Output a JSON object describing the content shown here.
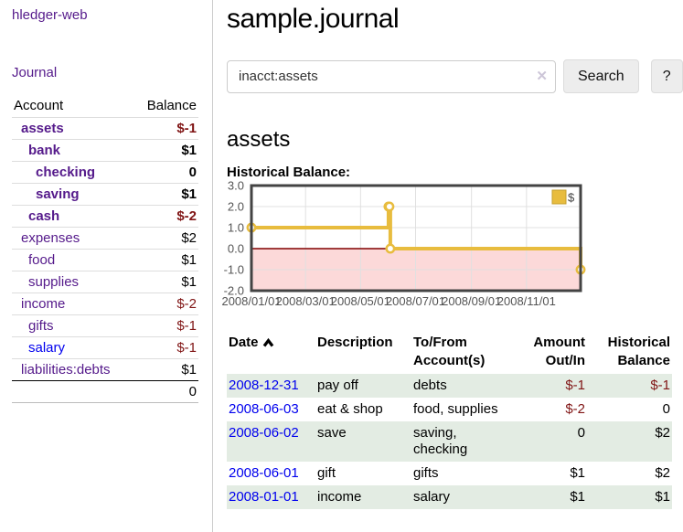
{
  "app": {
    "title": "hledger-web"
  },
  "colors": {
    "link_visited": "#551a8b",
    "link_unvisited": "#0000ee",
    "negative": "#801515",
    "stripe_green": "#e3ece3",
    "divider": "#cccccc"
  },
  "sidebar": {
    "journal_label": "Journal",
    "table": {
      "headers": [
        "Account",
        "Balance"
      ],
      "rows": [
        {
          "account": "assets",
          "balance": "$-1",
          "depth": 1,
          "bold": true,
          "negative": true,
          "link": "visited"
        },
        {
          "account": "bank",
          "balance": "$1",
          "depth": 2,
          "bold": true,
          "negative": false,
          "link": "visited"
        },
        {
          "account": "checking",
          "balance": "0",
          "depth": 3,
          "bold": true,
          "negative": false,
          "link": "visited"
        },
        {
          "account": "saving",
          "balance": "$1",
          "depth": 3,
          "bold": true,
          "negative": false,
          "link": "visited"
        },
        {
          "account": "cash",
          "balance": "$-2",
          "depth": 2,
          "bold": true,
          "negative": true,
          "link": "visited"
        },
        {
          "account": "expenses",
          "balance": "$2",
          "depth": 1,
          "bold": false,
          "negative": false,
          "link": "visited"
        },
        {
          "account": "food",
          "balance": "$1",
          "depth": 2,
          "bold": false,
          "negative": false,
          "link": "visited"
        },
        {
          "account": "supplies",
          "balance": "$1",
          "depth": 2,
          "bold": false,
          "negative": false,
          "link": "visited"
        },
        {
          "account": "income",
          "balance": "$-2",
          "depth": 1,
          "bold": false,
          "negative": true,
          "link": "visited"
        },
        {
          "account": "gifts",
          "balance": "$-1",
          "depth": 2,
          "bold": false,
          "negative": true,
          "link": "visited"
        },
        {
          "account": "salary",
          "balance": "$-1",
          "depth": 2,
          "bold": false,
          "negative": true,
          "link": "unvisited"
        },
        {
          "account": "liabilities:debts",
          "balance": "$1",
          "depth": 1,
          "bold": false,
          "negative": false,
          "link": "visited"
        }
      ],
      "total": "0"
    }
  },
  "header": {
    "title": "sample.journal"
  },
  "search": {
    "value": "inacct:assets",
    "clear_icon": "✕",
    "button_label": "Search",
    "help_label": "?"
  },
  "account_page": {
    "heading": "assets",
    "chart_label": "Historical Balance:"
  },
  "chart_data": {
    "type": "line",
    "step": true,
    "title": "Historical Balance",
    "series": [
      {
        "name": "$",
        "color": "#e8bc3e",
        "points": [
          {
            "date": "2008-01-01",
            "day": 0,
            "value": 1
          },
          {
            "date": "2008-06-01",
            "day": 152,
            "value": 2
          },
          {
            "date": "2008-06-02",
            "day": 153,
            "value": 2
          },
          {
            "date": "2008-06-03",
            "day": 154,
            "value": 0
          },
          {
            "date": "2008-12-31",
            "day": 365,
            "value": -1
          }
        ]
      }
    ],
    "x_ticks": [
      {
        "label": "2008/01/01",
        "day": 0
      },
      {
        "label": "2008/03/01",
        "day": 60
      },
      {
        "label": "2008/05/01",
        "day": 121
      },
      {
        "label": "2008/07/01",
        "day": 182
      },
      {
        "label": "2008/09/01",
        "day": 244
      },
      {
        "label": "2008/11/01",
        "day": 305
      }
    ],
    "y_ticks": [
      3.0,
      2.0,
      1.0,
      0.0,
      -1.0,
      -2.0
    ],
    "ylim": [
      -2,
      3
    ],
    "xlim_days": [
      0,
      365
    ],
    "grid": true,
    "legend_position": "top-right",
    "legend": {
      "label": "$",
      "swatch_color": "#e8bc3e",
      "swatch_border": "#c59f2e"
    },
    "negative_region_color": "#fcd9d9",
    "zero_line_color": "#800000",
    "grid_color": "#e0e0e0",
    "border_color": "#434343",
    "axis_text_color": "#545454"
  },
  "register": {
    "headers": [
      "Date",
      "Description",
      "To/From\nAccount(s)",
      "Amount\nOut/In",
      "Historical\nBalance"
    ],
    "rows": [
      {
        "date": "2008-12-31",
        "description": "pay off",
        "accounts": "debts",
        "amount": "$-1",
        "amount_negative": true,
        "balance": "$-1",
        "balance_negative": true,
        "shaded": true
      },
      {
        "date": "2008-06-03",
        "description": "eat & shop",
        "accounts": "food, supplies",
        "amount": "$-2",
        "amount_negative": true,
        "balance": "0",
        "balance_negative": false,
        "shaded": false
      },
      {
        "date": "2008-06-02",
        "description": "save",
        "accounts": "saving, checking",
        "amount": "0",
        "amount_negative": false,
        "balance": "$2",
        "balance_negative": false,
        "shaded": true
      },
      {
        "date": "2008-06-01",
        "description": "gift",
        "accounts": "gifts",
        "amount": "$1",
        "amount_negative": false,
        "balance": "$2",
        "balance_negative": false,
        "shaded": false
      },
      {
        "date": "2008-01-01",
        "description": "income",
        "accounts": "salary",
        "amount": "$1",
        "amount_negative": false,
        "balance": "$1",
        "balance_negative": false,
        "shaded": true
      }
    ]
  }
}
